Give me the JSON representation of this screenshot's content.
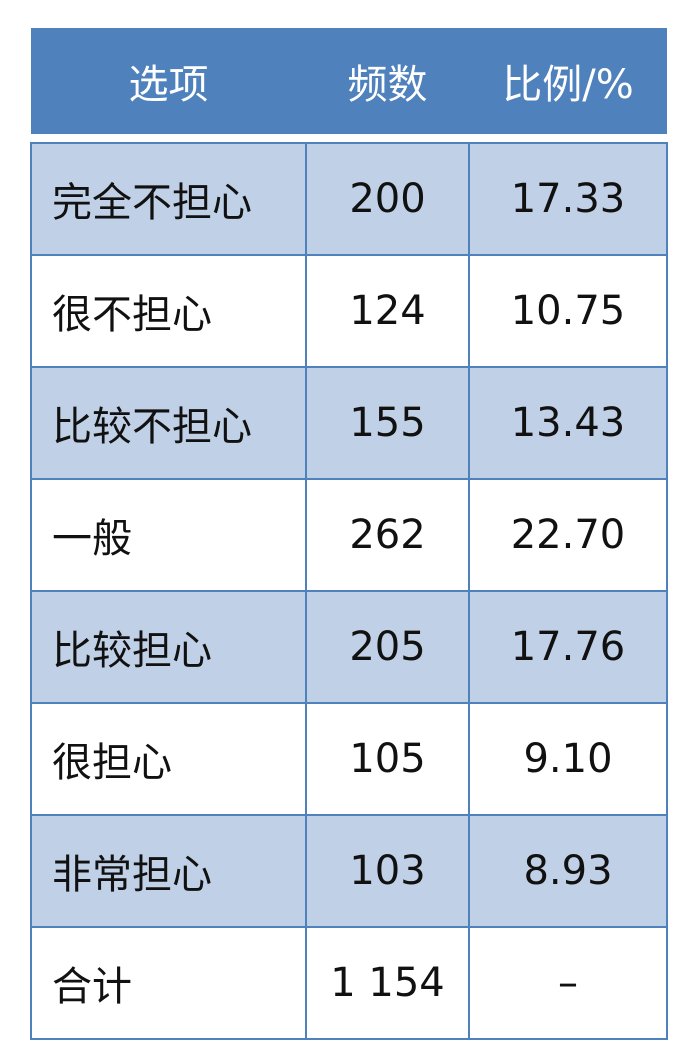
{
  "table": {
    "header": [
      "选项",
      "频数",
      "比例/%"
    ],
    "rows": [
      [
        "完全不担心",
        "200",
        "17.33"
      ],
      [
        "很不担心",
        "124",
        "10.75"
      ],
      [
        "比较不担心",
        "155",
        "13.43"
      ],
      [
        "一般",
        "262",
        "22.70"
      ],
      [
        "比较担心",
        "205",
        "17.76"
      ],
      [
        "很担心",
        "105",
        "9.10"
      ],
      [
        "非常担心",
        "103",
        "8.93"
      ],
      [
        "合计",
        "1 154",
        "–"
      ]
    ]
  }
}
